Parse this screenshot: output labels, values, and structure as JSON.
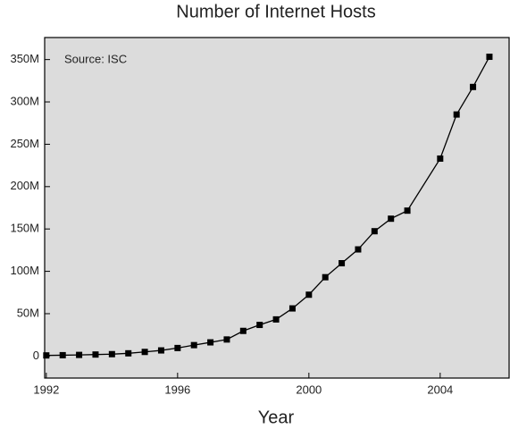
{
  "chart_data": {
    "type": "line",
    "title": "Number of Internet Hosts",
    "x_label": "Year",
    "annotation": "Source: ISC",
    "x": [
      1992,
      1992.5,
      1993,
      1993.5,
      1994,
      1994.5,
      1995,
      1995.5,
      1996,
      1996.5,
      1997,
      1997.5,
      1998,
      1998.5,
      1999,
      1999.5,
      2000,
      2000.5,
      2001,
      2001.5,
      2002,
      2002.5,
      2003,
      2004,
      2004.5,
      2005,
      2005.5
    ],
    "series": [
      {
        "name": "Internet hosts",
        "color": "#000000",
        "values": [
          727000,
          992000,
          1313000,
          1776000,
          2217000,
          3212000,
          4852000,
          6642000,
          9472000,
          12881000,
          16146000,
          19540000,
          29670000,
          36739000,
          43230000,
          56218000,
          72398000,
          93047000,
          109574000,
          125888000,
          147345000,
          162128000,
          171638000,
          233101000,
          285139000,
          317646000,
          353284000
        ]
      }
    ],
    "xlim": [
      1991.95,
      2006.1
    ],
    "xticks": [
      1992,
      1996,
      2000,
      2004
    ],
    "ylim": [
      -26000000,
      376000000
    ],
    "yticks": [
      0,
      {
        "value": 50000000,
        "label": "50M"
      },
      {
        "value": 100000000,
        "label": "100M"
      },
      {
        "value": 150000000,
        "label": "150M"
      },
      {
        "value": 200000000,
        "label": "200M"
      },
      {
        "value": 250000000,
        "label": "250M"
      },
      {
        "value": 300000000,
        "label": "300M"
      },
      {
        "value": 350000000,
        "label": "350M"
      }
    ],
    "grid": false
  }
}
